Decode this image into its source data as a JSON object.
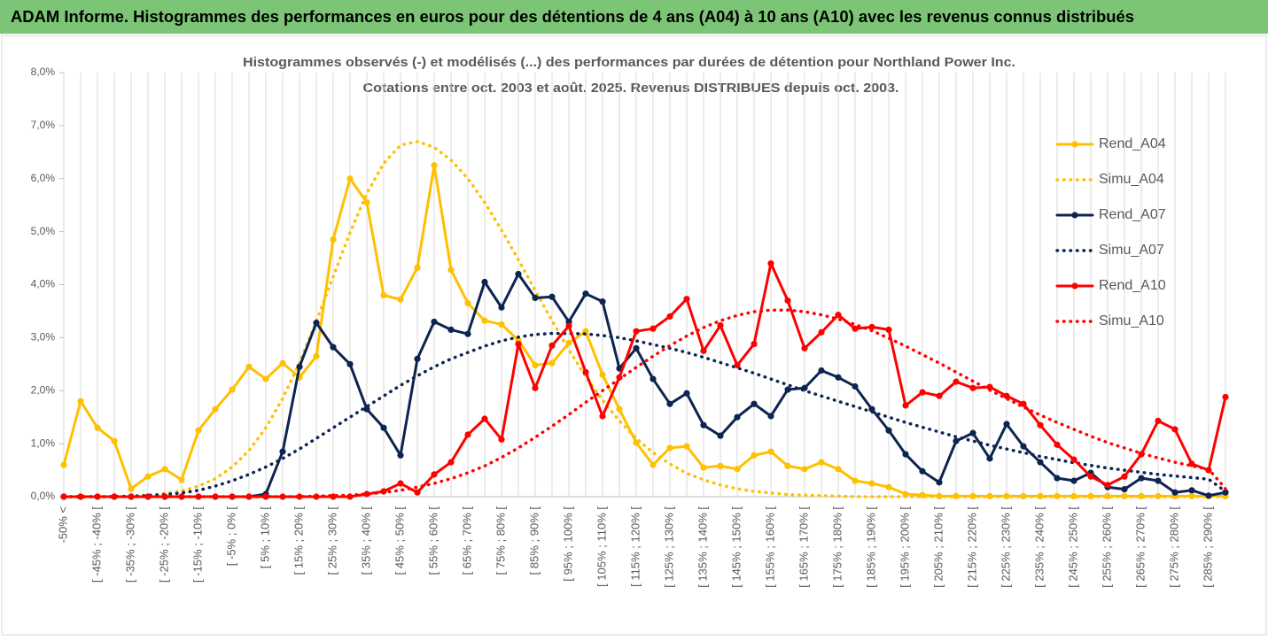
{
  "banner": "ADAM Informe. Histogrammes des performances en euros pour des détentions de 4 ans (A04) à 10 ans (A10) avec les revenus connus distribués",
  "chart_data": {
    "type": "line",
    "title": [
      "Histogrammes observés (-) et modélisés (...) des performances par durées de détention pour Northland Power Inc.",
      "Cotations entre oct. 2003 et août. 2025.  Revenus DISTRIBUES depuis oct. 2003."
    ],
    "categories": [
      "-50% <",
      null,
      "[ -45% ; -40% [",
      null,
      "[ -35% ; -30% [",
      null,
      "[ -25% ; -20% [",
      null,
      "[ -15% ; -10% [",
      null,
      "[ -5% ; 0% [",
      null,
      "[ 5% ; 10% [",
      null,
      "[ 15% ; 20% [",
      null,
      "[ 25% ; 30% [",
      null,
      "[ 35% ; 40% [",
      null,
      "[ 45% ; 50% [",
      null,
      "[ 55% ; 60% [",
      null,
      "[ 65% ; 70% [",
      null,
      "[ 75% ; 80% [",
      null,
      "[ 85% ; 90% [",
      null,
      "[ 95% ; 100% [",
      null,
      "[ 105% ; 110% [",
      null,
      "[ 115% ; 120% [",
      null,
      "[ 125% ; 130% [",
      null,
      "[ 135% ; 140% [",
      null,
      "[ 145% ; 150% [",
      null,
      "[ 155% ; 160% [",
      null,
      "[ 165% ; 170% [",
      null,
      "[ 175% ; 180% [",
      null,
      "[ 185% ; 190% [",
      null,
      "[ 195% ; 200% [",
      null,
      "[ 205% ; 210% [",
      null,
      "[ 215% ; 220% [",
      null,
      "[ 225% ; 230% [",
      null,
      "[ 235% ; 240% [",
      null,
      "[ 245% ; 250% [",
      null,
      "[ 255% ; 260% [",
      null,
      "[ 265% ; 270% [",
      null,
      "[ 275% ; 280% [",
      null,
      "[ 285% ; 290% [",
      null
    ],
    "series": [
      {
        "name": "Rend_A04",
        "color": "#ffc000",
        "style": "solid",
        "markers": true,
        "values": [
          0.6,
          1.8,
          1.3,
          1.05,
          0.15,
          0.38,
          0.52,
          0.32,
          1.25,
          1.65,
          2.02,
          2.45,
          2.22,
          2.52,
          2.25,
          2.65,
          4.85,
          6.0,
          5.55,
          3.8,
          3.72,
          4.32,
          6.25,
          4.28,
          3.65,
          3.32,
          3.25,
          2.95,
          2.48,
          2.52,
          2.9,
          3.12,
          2.3,
          1.65,
          1.02,
          0.6,
          0.92,
          0.95,
          0.55,
          0.58,
          0.52,
          0.78,
          0.85,
          0.58,
          0.52,
          0.65,
          0.52,
          0.3,
          0.25,
          0.18,
          0.05,
          0.03,
          0.01,
          0.01,
          0.01,
          0.01,
          0.01,
          0.01,
          0.01,
          0.01,
          0.01,
          0.01,
          0.01,
          0.01,
          0.01,
          0.01,
          0.01,
          0.01,
          0.01,
          0.01
        ]
      },
      {
        "name": "Simu_A04",
        "color": "#ffc000",
        "style": "dotted",
        "markers": false,
        "values": [
          0,
          0,
          0,
          0,
          0.01,
          0.03,
          0.06,
          0.11,
          0.2,
          0.34,
          0.56,
          0.87,
          1.3,
          1.85,
          2.53,
          3.31,
          4.15,
          4.98,
          5.72,
          6.29,
          6.63,
          6.7,
          6.59,
          6.35,
          6.0,
          5.55,
          5.03,
          4.47,
          3.89,
          3.32,
          2.77,
          2.27,
          1.82,
          1.43,
          1.1,
          0.83,
          0.62,
          0.44,
          0.32,
          0.22,
          0.15,
          0.1,
          0.07,
          0.04,
          0.03,
          0.02,
          0.01,
          0,
          0,
          0,
          0,
          0,
          0,
          0,
          0,
          0,
          0,
          0,
          0,
          0,
          0,
          0,
          0,
          0,
          0,
          0,
          0,
          0,
          0,
          0
        ]
      },
      {
        "name": "Rend_A07",
        "color": "#0d2452",
        "style": "solid",
        "markers": true,
        "values": [
          0,
          0,
          0,
          0,
          0,
          0,
          0,
          0,
          0,
          0,
          0,
          0,
          0.05,
          0.85,
          2.45,
          3.28,
          2.82,
          2.5,
          1.65,
          1.3,
          0.78,
          2.6,
          3.3,
          3.15,
          3.07,
          4.05,
          3.57,
          4.2,
          3.75,
          3.77,
          3.3,
          3.83,
          3.68,
          2.42,
          2.8,
          2.22,
          1.75,
          1.95,
          1.35,
          1.15,
          1.5,
          1.75,
          1.52,
          2.02,
          2.05,
          2.38,
          2.25,
          2.08,
          1.65,
          1.25,
          0.8,
          0.48,
          0.27,
          1.05,
          1.2,
          0.72,
          1.37,
          0.95,
          0.65,
          0.35,
          0.3,
          0.45,
          0.18,
          0.14,
          0.35,
          0.3,
          0.08,
          0.12,
          0.02,
          0.08
        ]
      },
      {
        "name": "Simu_A07",
        "color": "#0d2452",
        "style": "dotted",
        "markers": false,
        "values": [
          0,
          0,
          0,
          0,
          0.01,
          0.02,
          0.04,
          0.07,
          0.12,
          0.2,
          0.3,
          0.42,
          0.56,
          0.72,
          0.9,
          1.1,
          1.3,
          1.5,
          1.7,
          1.9,
          2.1,
          2.28,
          2.45,
          2.6,
          2.72,
          2.84,
          2.94,
          3.01,
          3.06,
          3.08,
          3.08,
          3.07,
          3.04,
          3.0,
          2.94,
          2.87,
          2.8,
          2.72,
          2.63,
          2.53,
          2.43,
          2.33,
          2.22,
          2.11,
          2.0,
          1.9,
          1.8,
          1.7,
          1.6,
          1.5,
          1.4,
          1.31,
          1.22,
          1.13,
          1.05,
          0.97,
          0.9,
          0.83,
          0.76,
          0.7,
          0.64,
          0.59,
          0.54,
          0.5,
          0.46,
          0.42,
          0.39,
          0.36,
          0.33,
          0.1
        ]
      },
      {
        "name": "Rend_A10",
        "color": "#ff0000",
        "style": "solid",
        "markers": true,
        "values": [
          0,
          0,
          0,
          0,
          0,
          0,
          0,
          0,
          0,
          0,
          0,
          0,
          0,
          0,
          0,
          0,
          0,
          0,
          0.05,
          0.1,
          0.25,
          0.08,
          0.42,
          0.65,
          1.17,
          1.47,
          1.08,
          2.88,
          2.05,
          2.85,
          3.22,
          2.35,
          1.52,
          2.25,
          3.12,
          3.17,
          3.4,
          3.73,
          2.75,
          3.23,
          2.48,
          2.88,
          4.4,
          3.7,
          2.8,
          3.1,
          3.43,
          3.17,
          3.2,
          3.15,
          1.72,
          1.97,
          1.9,
          2.17,
          2.05,
          2.07,
          1.9,
          1.75,
          1.35,
          0.98,
          0.7,
          0.38,
          0.22,
          0.38,
          0.8,
          1.43,
          1.27,
          0.62,
          0.5,
          1.88
        ]
      },
      {
        "name": "Simu_A10",
        "color": "#ff0000",
        "style": "dotted",
        "markers": false,
        "values": [
          0,
          0,
          0,
          0,
          0,
          0,
          0,
          0,
          0,
          0,
          0,
          0,
          0,
          0,
          0,
          0.01,
          0.02,
          0.03,
          0.05,
          0.08,
          0.12,
          0.18,
          0.25,
          0.34,
          0.45,
          0.58,
          0.74,
          0.92,
          1.12,
          1.33,
          1.55,
          1.78,
          2.0,
          2.22,
          2.44,
          2.65,
          2.85,
          3.03,
          3.19,
          3.32,
          3.42,
          3.49,
          3.52,
          3.52,
          3.49,
          3.43,
          3.35,
          3.25,
          3.13,
          2.99,
          2.84,
          2.68,
          2.52,
          2.35,
          2.18,
          2.01,
          1.85,
          1.69,
          1.54,
          1.4,
          1.27,
          1.14,
          1.02,
          0.92,
          0.82,
          0.73,
          0.65,
          0.58,
          0.52,
          0.15
        ]
      }
    ],
    "ylim": [
      0,
      8
    ],
    "yticks": [
      {
        "value": 0,
        "label": "0,0%"
      },
      {
        "value": 1,
        "label": "1,0%"
      },
      {
        "value": 2,
        "label": "2,0%"
      },
      {
        "value": 3,
        "label": "3,0%"
      },
      {
        "value": 4,
        "label": "4,0%"
      },
      {
        "value": 5,
        "label": "5,0%"
      },
      {
        "value": 6,
        "label": "6,0%"
      },
      {
        "value": 7,
        "label": "7,0%"
      },
      {
        "value": 8,
        "label": "8,0%"
      }
    ],
    "grid": "x",
    "legend": "right"
  }
}
